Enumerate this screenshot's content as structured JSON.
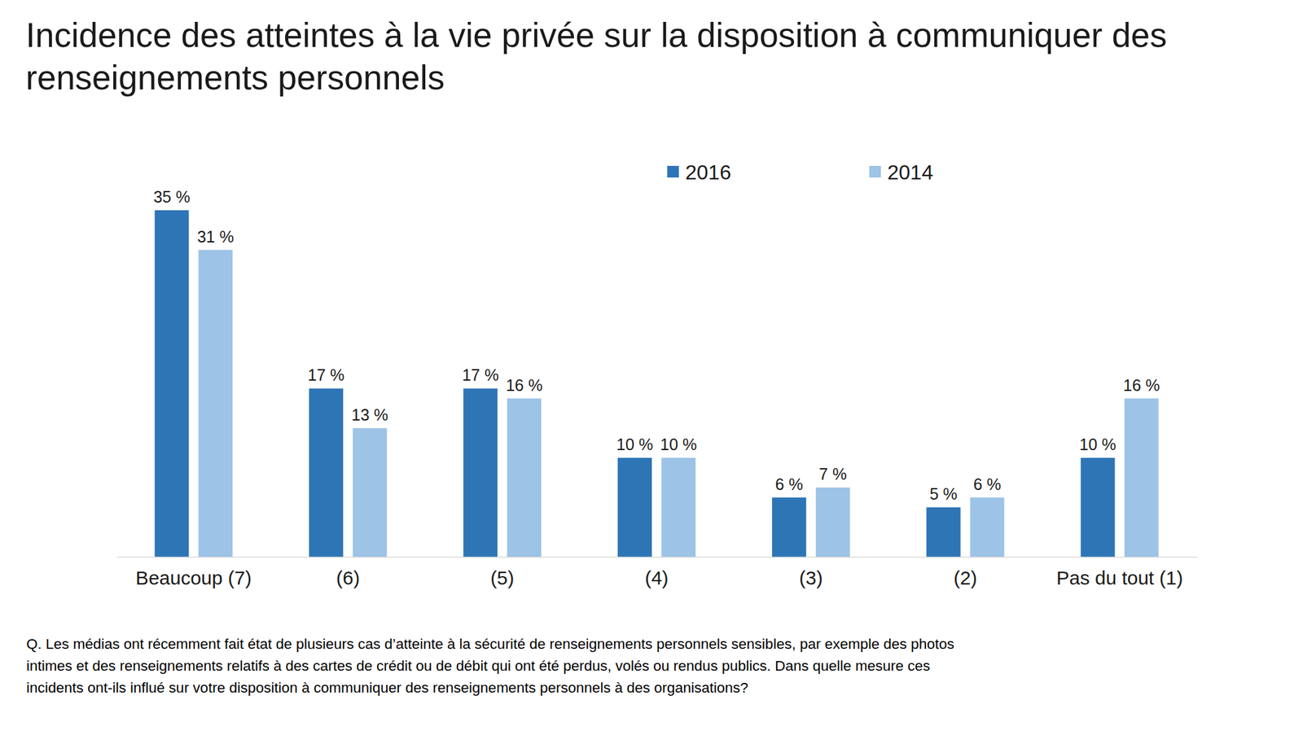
{
  "chart_data": {
    "type": "bar",
    "title": "Incidence des atteintes à la vie privée sur la disposition à communiquer des renseignements personnels",
    "categories": [
      "Beaucoup (7)",
      "(6)",
      "(5)",
      "(4)",
      "(3)",
      "(2)",
      "Pas du tout (1)"
    ],
    "series": [
      {
        "name": "2016",
        "color": "#2e75b6",
        "values": [
          35,
          17,
          17,
          10,
          6,
          5,
          10
        ],
        "value_labels": [
          "35 %",
          "17 %",
          "17 %",
          "10 %",
          "6 %",
          "5 %",
          "10 %"
        ]
      },
      {
        "name": "2014",
        "color": "#9dc3e6",
        "values": [
          31,
          13,
          16,
          10,
          7,
          6,
          16
        ],
        "value_labels": [
          "31 %",
          "13 %",
          "16 %",
          "10 %",
          "7 %",
          "6 %",
          "16 %"
        ]
      }
    ],
    "ylim": [
      0,
      35
    ],
    "data_labels": true,
    "legend": "top",
    "grid": false,
    "tick_labels": "x",
    "annotations": [
      "Q. Les médias ont récemment fait état de plusieurs cas d’atteinte à la sécurité de renseignements personnels sensibles, par exemple des photos intimes et des renseignements relatifs à des cartes de crédit ou de débit qui ont été perdus, volés ou rendus publics. Dans quelle mesure ces incidents ont-ils influé sur votre disposition à communiquer des renseignements personnels à des organisations?"
    ]
  }
}
